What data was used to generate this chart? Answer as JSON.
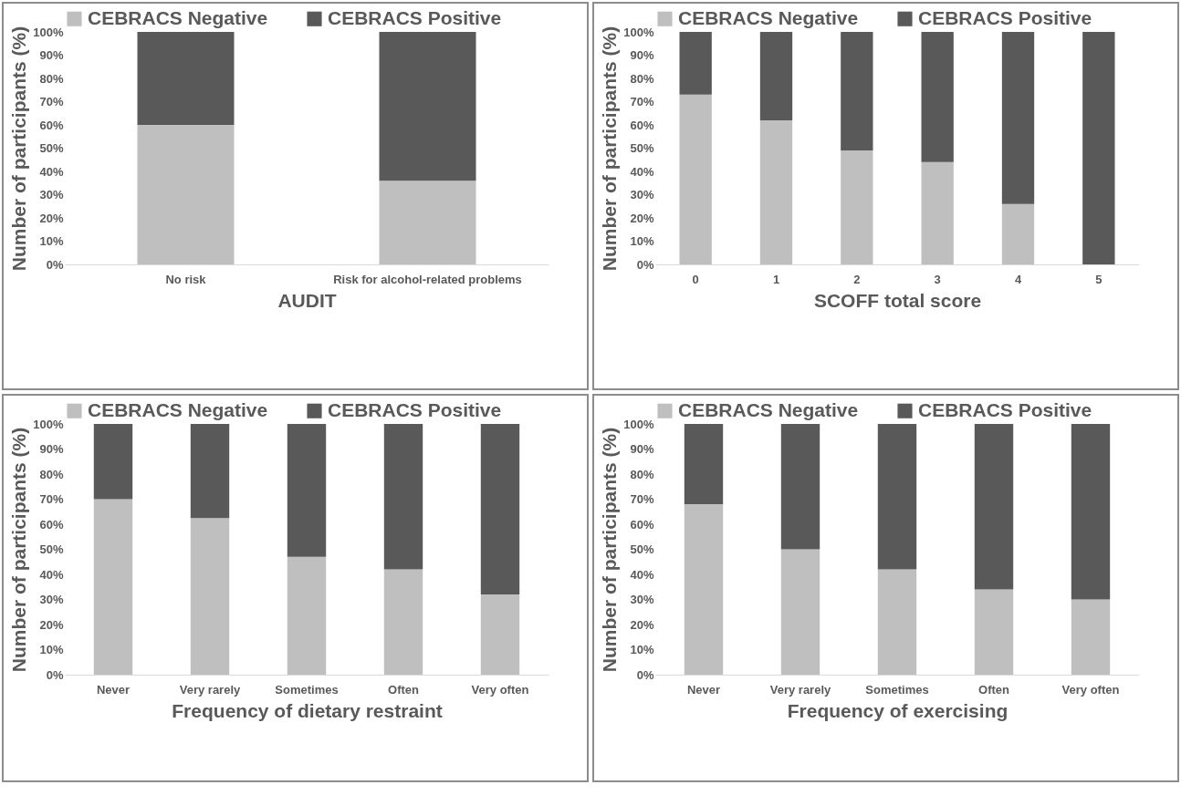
{
  "chart_data": [
    {
      "type": "bar",
      "stacked": true,
      "legend": "top",
      "xlabel": "AUDIT",
      "ylabel": "Number of participants (%)",
      "categories": [
        "No risk",
        "Risk for alcohol-related problems"
      ],
      "series": [
        {
          "name": "CEBRACS Negative",
          "color": "#bfbfbf",
          "values": [
            60,
            36
          ]
        },
        {
          "name": "CEBRACS Positive",
          "color": "#595959",
          "values": [
            40,
            64
          ]
        }
      ],
      "ylim": [
        0,
        100
      ],
      "yticks": [
        {
          "value": 0,
          "label": "0%"
        },
        {
          "value": 10,
          "label": "10%"
        },
        {
          "value": 20,
          "label": "20%"
        },
        {
          "value": 30,
          "label": "30%"
        },
        {
          "value": 40,
          "label": "40%"
        },
        {
          "value": 50,
          "label": "50%"
        },
        {
          "value": 60,
          "label": "60%"
        },
        {
          "value": 70,
          "label": "70%"
        },
        {
          "value": 80,
          "label": "80%"
        },
        {
          "value": 90,
          "label": "90%"
        },
        {
          "value": 100,
          "label": "100%"
        }
      ]
    },
    {
      "type": "bar",
      "stacked": true,
      "legend": "top",
      "xlabel": "SCOFF total score",
      "ylabel": "Number of participants (%)",
      "categories": [
        "0",
        "1",
        "2",
        "3",
        "4",
        "5"
      ],
      "series": [
        {
          "name": "CEBRACS Negative",
          "color": "#bfbfbf",
          "values": [
            73,
            62,
            49,
            44,
            26,
            0
          ]
        },
        {
          "name": "CEBRACS Positive",
          "color": "#595959",
          "values": [
            27,
            38,
            51,
            56,
            74,
            100
          ]
        }
      ],
      "ylim": [
        0,
        100
      ],
      "yticks": [
        {
          "value": 0,
          "label": "0%"
        },
        {
          "value": 10,
          "label": "10%"
        },
        {
          "value": 20,
          "label": "20%"
        },
        {
          "value": 30,
          "label": "30%"
        },
        {
          "value": 40,
          "label": "40%"
        },
        {
          "value": 50,
          "label": "50%"
        },
        {
          "value": 60,
          "label": "60%"
        },
        {
          "value": 70,
          "label": "70%"
        },
        {
          "value": 80,
          "label": "80%"
        },
        {
          "value": 90,
          "label": "90%"
        },
        {
          "value": 100,
          "label": "100%"
        }
      ]
    },
    {
      "type": "bar",
      "stacked": true,
      "legend": "top",
      "xlabel": "Frequency of dietary restraint",
      "ylabel": "Number of participants (%)",
      "categories": [
        "Never",
        "Very rarely",
        "Sometimes",
        "Often",
        "Very often"
      ],
      "series": [
        {
          "name": "CEBRACS Negative",
          "color": "#bfbfbf",
          "values": [
            70,
            62.5,
            47,
            42,
            32
          ]
        },
        {
          "name": "CEBRACS Positive",
          "color": "#595959",
          "values": [
            30,
            37.5,
            53,
            58,
            68
          ]
        }
      ],
      "ylim": [
        0,
        100
      ],
      "yticks": [
        {
          "value": 0,
          "label": "0%"
        },
        {
          "value": 10,
          "label": "10%"
        },
        {
          "value": 20,
          "label": "20%"
        },
        {
          "value": 30,
          "label": "30%"
        },
        {
          "value": 40,
          "label": "40%"
        },
        {
          "value": 50,
          "label": "50%"
        },
        {
          "value": 60,
          "label": "60%"
        },
        {
          "value": 70,
          "label": "70%"
        },
        {
          "value": 80,
          "label": "80%"
        },
        {
          "value": 90,
          "label": "90%"
        },
        {
          "value": 100,
          "label": "100%"
        }
      ]
    },
    {
      "type": "bar",
      "stacked": true,
      "legend": "top",
      "xlabel": "Frequency of exercising",
      "ylabel": "Number of participants (%)",
      "categories": [
        "Never",
        "Very rarely",
        "Sometimes",
        "Often",
        "Very often"
      ],
      "series": [
        {
          "name": "CEBRACS Negative",
          "color": "#bfbfbf",
          "values": [
            68,
            50,
            42,
            34,
            30
          ]
        },
        {
          "name": "CEBRACS Positive",
          "color": "#595959",
          "values": [
            32,
            50,
            58,
            66,
            70
          ]
        }
      ],
      "ylim": [
        0,
        100
      ],
      "yticks": [
        {
          "value": 0,
          "label": "0%"
        },
        {
          "value": 10,
          "label": "10%"
        },
        {
          "value": 20,
          "label": "20%"
        },
        {
          "value": 30,
          "label": "30%"
        },
        {
          "value": 40,
          "label": "40%"
        },
        {
          "value": 50,
          "label": "50%"
        },
        {
          "value": 60,
          "label": "60%"
        },
        {
          "value": 70,
          "label": "70%"
        },
        {
          "value": 80,
          "label": "80%"
        },
        {
          "value": 90,
          "label": "90%"
        },
        {
          "value": 100,
          "label": "100%"
        }
      ]
    }
  ]
}
